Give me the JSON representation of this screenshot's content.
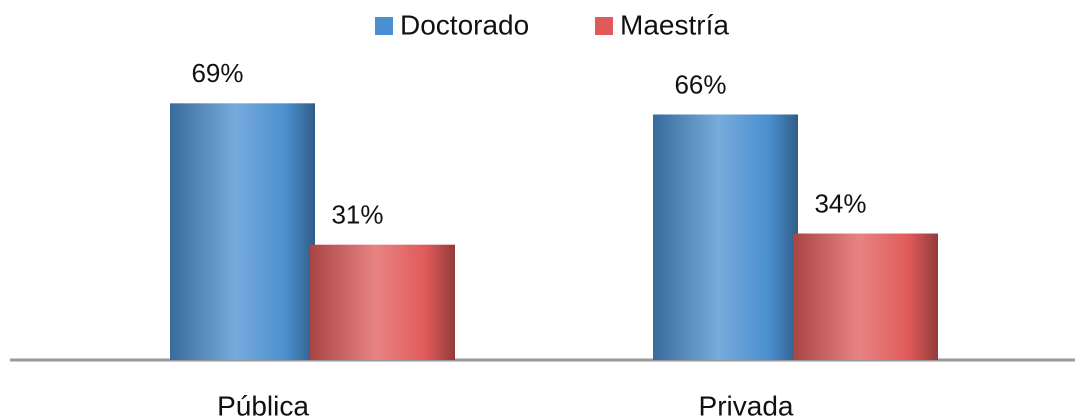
{
  "chart_data": {
    "type": "bar",
    "categories": [
      "Pública",
      "Privada"
    ],
    "series": [
      {
        "name": "Doctorado",
        "color": "#4a8fd0",
        "values": [
          69,
          66
        ],
        "value_labels": [
          "69%",
          "66%"
        ]
      },
      {
        "name": "Maestría",
        "color": "#e05a5a",
        "values": [
          31,
          34
        ],
        "value_labels": [
          "31%",
          "34%"
        ]
      }
    ],
    "legend": "top"
  }
}
